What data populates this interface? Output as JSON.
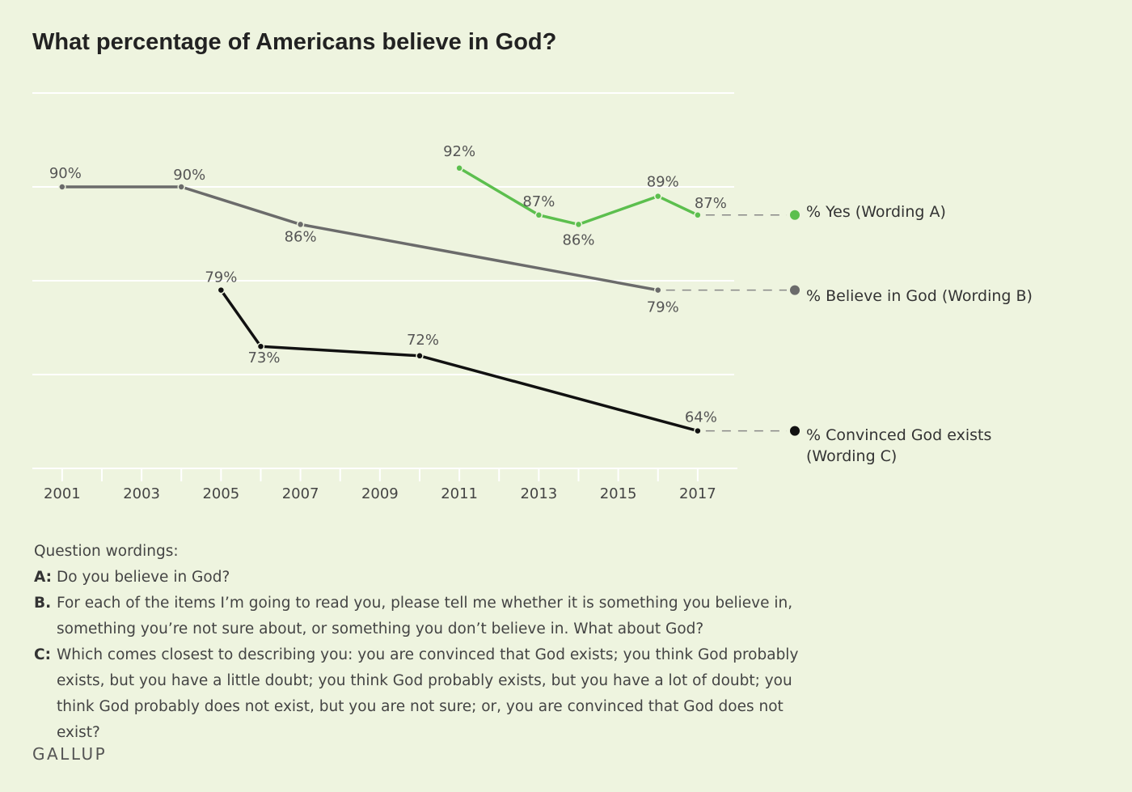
{
  "chart_data": {
    "type": "line",
    "title": "What percentage of Americans believe in God?",
    "xlim": [
      2000.25,
      2018
    ],
    "xticks": [
      2001,
      2003,
      2005,
      2007,
      2009,
      2011,
      2013,
      2015,
      2017
    ],
    "xminorticks": [
      2002,
      2004,
      2006,
      2008,
      2010,
      2012,
      2014,
      2016
    ],
    "ylim": [
      60,
      100
    ],
    "yticks": [
      70,
      80,
      90,
      100
    ],
    "grid": true,
    "series": [
      {
        "name": "% Yes (Wording A)",
        "color": "#5cbf4e",
        "x": [
          2011,
          2013,
          2014,
          2016,
          2017
        ],
        "values": [
          92,
          87,
          86,
          89,
          87
        ],
        "value_labels": [
          "92%",
          "87%",
          "86%",
          "89%",
          "87%"
        ]
      },
      {
        "name": "% Believe in God (Wording B)",
        "color": "#6b6b6b",
        "x": [
          2001,
          2004,
          2007,
          2016
        ],
        "values": [
          90,
          90,
          86,
          79
        ],
        "value_labels": [
          "90%",
          "90%",
          "86%",
          "79%"
        ]
      },
      {
        "name": "% Convinced God exists (Wording C)",
        "color": "#111111",
        "x": [
          2005,
          2006,
          2010,
          2017
        ],
        "values": [
          79,
          73,
          72,
          64
        ],
        "value_labels": [
          "79%",
          "73%",
          "72%",
          "64%"
        ]
      }
    ]
  },
  "notes": {
    "heading": "Question wordings:",
    "items": [
      {
        "letter": "A:",
        "text": "Do you believe in God?"
      },
      {
        "letter": "B.",
        "text": "For each of the items I’m going to read you, please tell me whether it is something you believe in, something you’re not sure about, or something you don’t believe in.  What about God?"
      },
      {
        "letter": "C:",
        "text": "Which comes closest to describing you: you are convinced that God exists; you think God probably exists, but you have a little doubt; you think God probably exists, but you have a lot of doubt; you think God probably does not exist, but you are not sure; or, you are convinced that God does not exist?"
      }
    ]
  },
  "source": "GALLUP"
}
